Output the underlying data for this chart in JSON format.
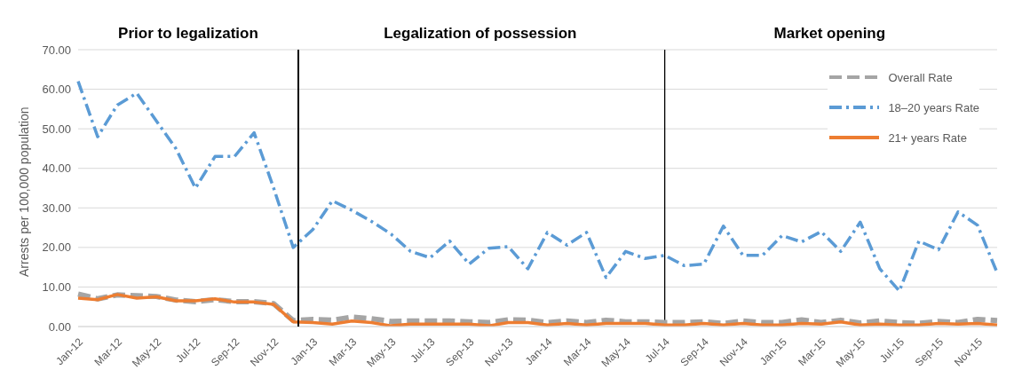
{
  "chart_data": {
    "type": "line",
    "ylabel": "Arrests per 100,000 population",
    "annotations": [
      "Prior to legalization",
      "Legalization of possession",
      "Market opening"
    ],
    "categories": [
      "Jan-12",
      null,
      "Mar-12",
      null,
      "May-12",
      null,
      "Jul-12",
      null,
      "Sep-12",
      null,
      "Nov-12",
      null,
      "Jan-13",
      null,
      "Mar-13",
      null,
      "May-13",
      null,
      "Jul-13",
      null,
      "Sep-13",
      null,
      "Nov-13",
      null,
      "Jan-14",
      null,
      "Mar-14",
      null,
      "May-14",
      null,
      "Jul-14",
      null,
      "Sep-14",
      null,
      "Nov-14",
      null,
      "Jan-15",
      null,
      "Mar-15",
      null,
      "May-15",
      null,
      "Jul-15",
      null,
      "Sep-15",
      null,
      "Nov-15",
      null
    ],
    "series": [
      {
        "name": "Overall Rate",
        "color": "#a5a5a5",
        "line_style": "dashed",
        "values": [
          8.2,
          7.0,
          8.0,
          7.8,
          7.6,
          6.7,
          6.3,
          6.8,
          6.3,
          6.3,
          5.8,
          1.5,
          1.8,
          1.6,
          2.4,
          2.0,
          1.3,
          1.4,
          1.4,
          1.4,
          1.2,
          1.0,
          1.7,
          1.6,
          1.0,
          1.4,
          1.0,
          1.6,
          1.2,
          1.2,
          1.0,
          1.0,
          1.2,
          0.8,
          1.4,
          1.0,
          1.0,
          1.7,
          1.0,
          1.6,
          0.9,
          1.4,
          1.0,
          0.8,
          1.3,
          1.0,
          1.8,
          1.5
        ]
      },
      {
        "name": "18–20 years Rate",
        "color": "#5b9bd5",
        "line_style": "dashdot",
        "values": [
          62,
          48,
          56,
          59,
          52,
          45,
          35,
          43,
          43,
          49,
          35,
          20,
          24.5,
          31.8,
          29.4,
          26.6,
          23.4,
          19,
          17.4,
          21.6,
          15.8,
          19.8,
          20.2,
          14.6,
          23.8,
          20.6,
          23.8,
          12.4,
          19,
          17.2,
          18,
          15.4,
          15.8,
          25.4,
          18,
          18,
          23,
          21.4,
          24,
          19,
          26.4,
          14.6,
          9,
          21.6,
          19.4,
          29,
          25.6,
          13.6
        ]
      },
      {
        "name": "21+ years Rate",
        "color": "#ed7d31",
        "line_style": "solid",
        "values": [
          7.2,
          6.8,
          8.1,
          7.2,
          7.5,
          6.5,
          6.5,
          7.0,
          6.2,
          6.2,
          5.6,
          1.2,
          1.0,
          0.6,
          1.4,
          1.0,
          0.2,
          0.6,
          0.6,
          0.6,
          0.6,
          0.2,
          1.0,
          1.0,
          0.4,
          0.8,
          0.4,
          0.8,
          0.8,
          0.8,
          0.4,
          0.4,
          0.8,
          0.4,
          0.8,
          0.4,
          0.4,
          0.8,
          0.6,
          1.2,
          0.4,
          0.6,
          0.4,
          0.4,
          0.8,
          0.6,
          0.8,
          0.4
        ]
      }
    ],
    "ylim": [
      0,
      70
    ],
    "yticks": [
      {
        "value": 0,
        "label": "0.00"
      },
      {
        "value": 10,
        "label": "10.00"
      },
      {
        "value": 20,
        "label": "20.00"
      },
      {
        "value": 30,
        "label": "30.00"
      },
      {
        "value": 40,
        "label": "40.00"
      },
      {
        "value": 50,
        "label": "50.00"
      },
      {
        "value": 60,
        "label": "60.00"
      },
      {
        "value": 70,
        "label": "70.00"
      }
    ],
    "ref_lines": [
      {
        "axis": "x",
        "value": "Jul-14",
        "color": "#000000"
      }
    ],
    "grid": "y",
    "legend": "top right",
    "marker": "none"
  }
}
